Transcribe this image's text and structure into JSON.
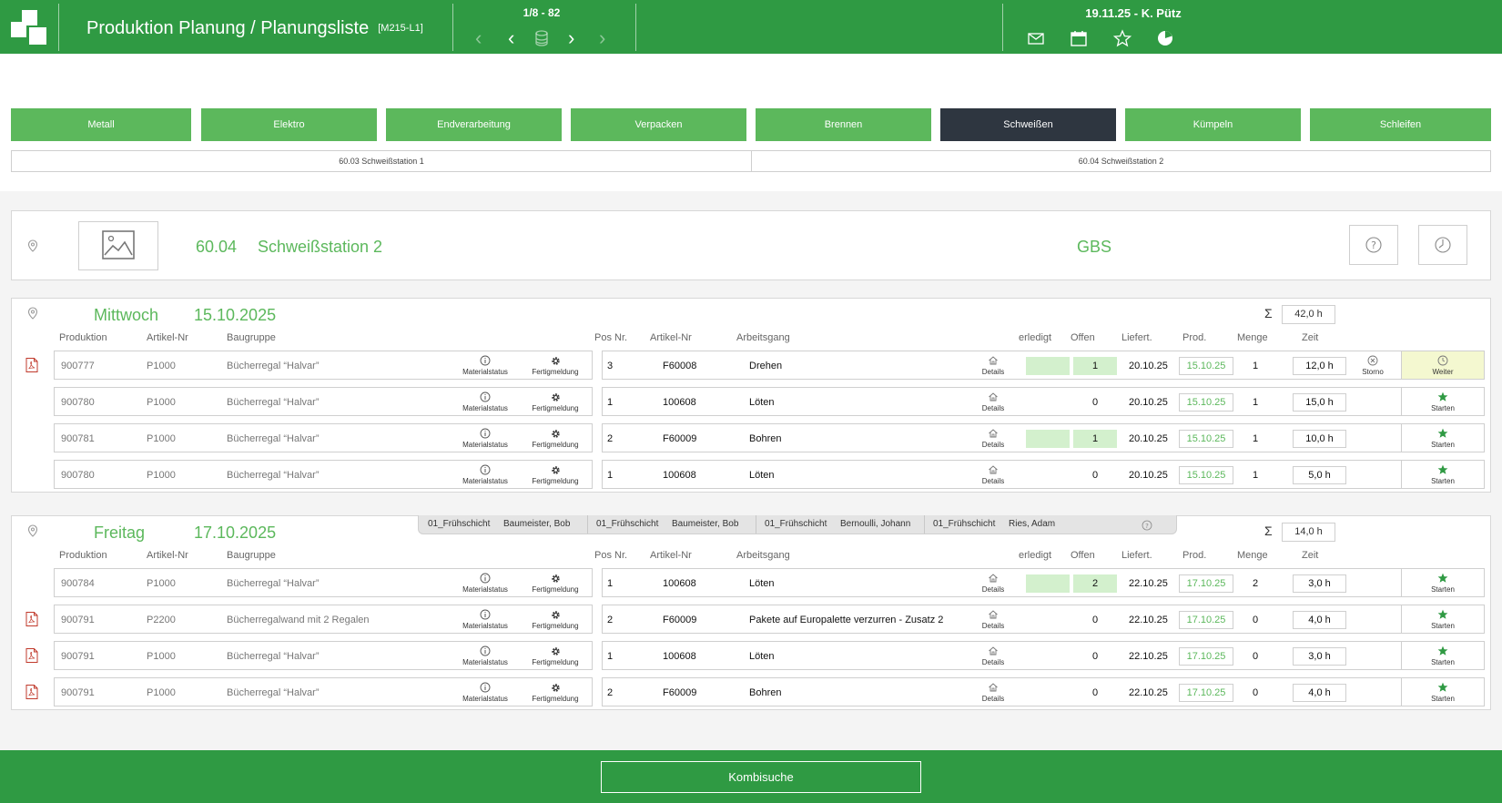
{
  "header": {
    "title": "Produktion Planung / Planungsliste",
    "code": "[M215-L1]",
    "pager": "1/8 - 82",
    "user": "19.11.25 - K. Pütz"
  },
  "tabs": [
    "Metall",
    "Elektro",
    "Endverarbeitung",
    "Verpacken",
    "Brennen",
    "Schweißen",
    "Kümpeln",
    "Schleifen"
  ],
  "active_tab": "Schweißen",
  "stations": [
    "60.03 Schweißstation 1",
    "60.04 Schweißstation 2"
  ],
  "workstation": {
    "number": "60.04",
    "name": "Schweißstation 2",
    "group": "GBS"
  },
  "columns": {
    "produktion": "Produktion",
    "artikel": "Artikel-Nr",
    "baugruppe": "Baugruppe",
    "pos": "Pos Nr.",
    "artikel2": "Artikel-Nr",
    "arbeitsgang": "Arbeitsgang",
    "erledigt": "erledigt",
    "offen": "Offen",
    "liefert": "Liefert.",
    "prod": "Prod.",
    "menge": "Menge",
    "zeit": "Zeit"
  },
  "labels": {
    "materialstatus": "Materialstatus",
    "fertigmeldung": "Fertigmeldung",
    "details": "Details",
    "storno": "Storno",
    "weiter": "Weiter",
    "starten": "Starten",
    "sigma": "Σ"
  },
  "days": [
    {
      "name": "Mittwoch",
      "date": "15.10.2025",
      "sum": "42,0 h",
      "rows": [
        {
          "pdf": true,
          "produktion": "900777",
          "artikel": "P1000",
          "baugruppe": "Bücherregal “Halvar”",
          "pos": "3",
          "artikel2": "F60008",
          "arbeitsgang": "Drehen",
          "erledigt_bar": true,
          "offen": "1",
          "offen_hl": true,
          "liefert": "20.10.25",
          "prod": "15.10.25",
          "menge": "1",
          "zeit": "12,0 h",
          "storno": true,
          "action": "weiter"
        },
        {
          "pdf": false,
          "produktion": "900780",
          "artikel": "P1000",
          "baugruppe": "Bücherregal “Halvar”",
          "pos": "1",
          "artikel2": "100608",
          "arbeitsgang": "Löten",
          "erledigt_bar": false,
          "offen": "0",
          "offen_hl": false,
          "liefert": "20.10.25",
          "prod": "15.10.25",
          "menge": "1",
          "zeit": "15,0 h",
          "storno": false,
          "action": "starten"
        },
        {
          "pdf": false,
          "produktion": "900781",
          "artikel": "P1000",
          "baugruppe": "Bücherregal “Halvar”",
          "pos": "2",
          "artikel2": "F60009",
          "arbeitsgang": "Bohren",
          "erledigt_bar": true,
          "offen": "1",
          "offen_hl": true,
          "liefert": "20.10.25",
          "prod": "15.10.25",
          "menge": "1",
          "zeit": "10,0 h",
          "storno": false,
          "action": "starten"
        },
        {
          "pdf": false,
          "produktion": "900780",
          "artikel": "P1000",
          "baugruppe": "Bücherregal “Halvar”",
          "pos": "1",
          "artikel2": "100608",
          "arbeitsgang": "Löten",
          "erledigt_bar": false,
          "offen": "0",
          "offen_hl": false,
          "liefert": "20.10.25",
          "prod": "15.10.25",
          "menge": "1",
          "zeit": "5,0 h",
          "storno": false,
          "action": "starten"
        }
      ]
    },
    {
      "name": "Freitag",
      "date": "17.10.2025",
      "sum": "14,0 h",
      "shifts": [
        {
          "shift": "01_Frühschicht",
          "person": "Baumeister, Bob"
        },
        {
          "shift": "01_Frühschicht",
          "person": "Baumeister, Bob"
        },
        {
          "shift": "01_Frühschicht",
          "person": "Bernoulli, Johann"
        },
        {
          "shift": "01_Frühschicht",
          "person": "Ries, Adam"
        }
      ],
      "rows": [
        {
          "pdf": false,
          "produktion": "900784",
          "artikel": "P1000",
          "baugruppe": "Bücherregal “Halvar”",
          "pos": "1",
          "artikel2": "100608",
          "arbeitsgang": "Löten",
          "erledigt_bar": true,
          "offen": "2",
          "offen_hl": true,
          "liefert": "22.10.25",
          "prod": "17.10.25",
          "menge": "2",
          "zeit": "3,0 h",
          "storno": false,
          "action": "starten"
        },
        {
          "pdf": true,
          "produktion": "900791",
          "artikel": "P2200",
          "baugruppe": "Bücherregalwand mit 2 Regalen",
          "pos": "2",
          "artikel2": "F60009",
          "arbeitsgang": "Pakete auf Europalette verzurren - Zusatz 2",
          "erledigt_bar": false,
          "offen": "0",
          "offen_hl": false,
          "liefert": "22.10.25",
          "prod": "17.10.25",
          "menge": "0",
          "zeit": "4,0 h",
          "storno": false,
          "action": "starten"
        },
        {
          "pdf": true,
          "produktion": "900791",
          "artikel": "P1000",
          "baugruppe": "Bücherregal “Halvar”",
          "pos": "1",
          "artikel2": "100608",
          "arbeitsgang": "Löten",
          "erledigt_bar": false,
          "offen": "0",
          "offen_hl": false,
          "liefert": "22.10.25",
          "prod": "17.10.25",
          "menge": "0",
          "zeit": "3,0 h",
          "storno": false,
          "action": "starten"
        },
        {
          "pdf": true,
          "produktion": "900791",
          "artikel": "P1000",
          "baugruppe": "Bücherregal “Halvar”",
          "pos": "2",
          "artikel2": "F60009",
          "arbeitsgang": "Bohren",
          "erledigt_bar": false,
          "offen": "0",
          "offen_hl": false,
          "liefert": "22.10.25",
          "prod": "17.10.25",
          "menge": "0",
          "zeit": "4,0 h",
          "storno": false,
          "action": "starten"
        }
      ]
    }
  ],
  "footer": {
    "button": "Kombisuche"
  },
  "icons": {
    "logo": "logo-icon",
    "nav": [
      "first-page-icon",
      "prev-page-icon",
      "database-icon",
      "next-page-icon",
      "last-page-icon"
    ],
    "top": [
      "mail-icon",
      "calendar-icon",
      "star-icon",
      "pie-chart-icon"
    ],
    "row": [
      "info-icon",
      "gear-icon",
      "home-icon",
      "cancel-icon",
      "clock-icon",
      "star-icon",
      "pdf-icon"
    ]
  },
  "colors": {
    "brand_green": "#2f9a43",
    "tab_green": "#5cb85c",
    "tab_active": "#2e3640",
    "highlight": "#d3f0cd",
    "weiter_bg": "#f4f8d0"
  }
}
